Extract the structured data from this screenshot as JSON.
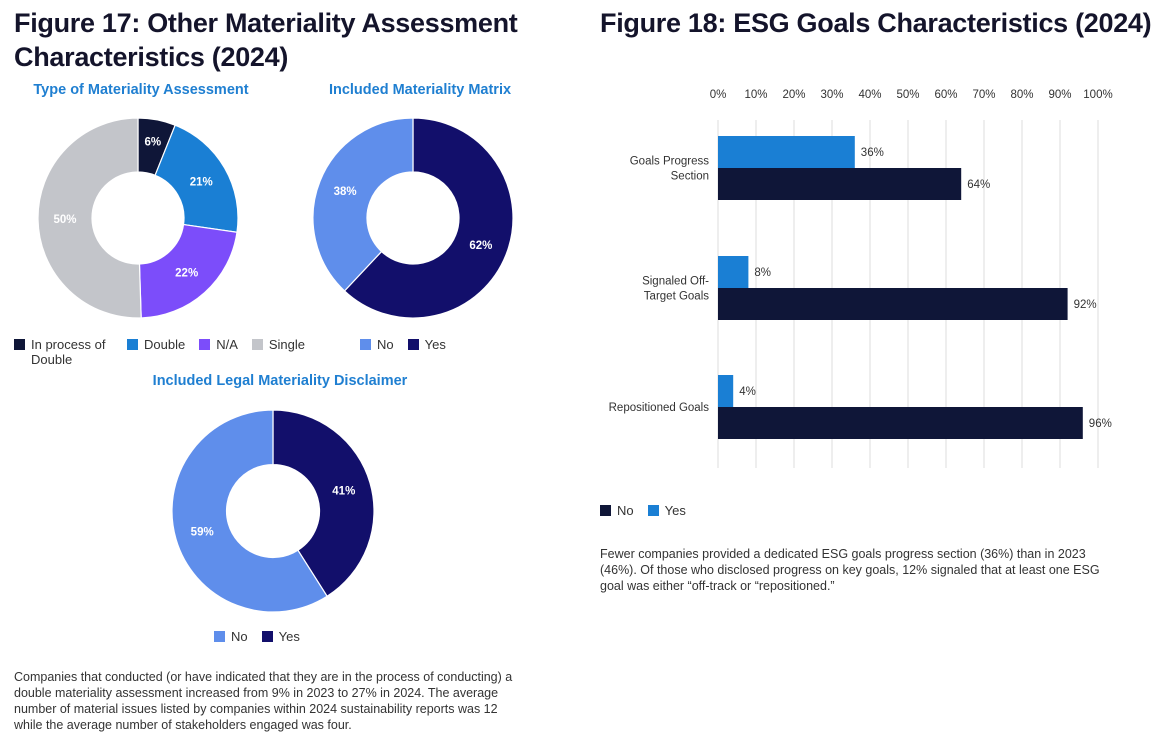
{
  "figure17": {
    "title": "Figure 17: Other Materiality Assessment Characteristics (2024)",
    "caption": "Companies that conducted (or have indicated that they are in the process of conducting) a double materiality assessment increased from 9% in 2023 to 27% in 2024. The average number of material issues listed by companies within 2024 sustainability reports was 12 while the average number of stakeholders engaged was four."
  },
  "figure18": {
    "title": "Figure 18: ESG Goals Characteristics (2024)",
    "caption": "Fewer companies provided a dedicated ESG goals progress section (36%) than in 2023 (46%). Of those who disclosed progress on key goals, 12% signaled that at least one ESG goal was either “off-track or “repositioned.”"
  },
  "chart_data": [
    {
      "type": "pie",
      "donut": true,
      "title": "Type of Materiality Assessment",
      "slices": [
        {
          "label": "In process of Double",
          "value": 6,
          "display": "6%",
          "color": "#0f1638"
        },
        {
          "label": "Double",
          "value": 21,
          "display": "21%",
          "color": "#1a7fd4"
        },
        {
          "label": "N/A",
          "value": 22,
          "display": "22%",
          "color": "#7c4dfa"
        },
        {
          "label": "Single",
          "value": 50,
          "display": "50%",
          "color": "#c3c5ca"
        }
      ],
      "legend": [
        "In process of Double",
        "Double",
        "N/A",
        "Single"
      ],
      "legend_placement": "bottom"
    },
    {
      "type": "pie",
      "donut": true,
      "title": "Included Materiality Matrix",
      "slices": [
        {
          "label": "Yes",
          "value": 62,
          "display": "62%",
          "color": "#120f6b"
        },
        {
          "label": "No",
          "value": 38,
          "display": "38%",
          "color": "#5f8eeb"
        }
      ],
      "legend": [
        "No",
        "Yes"
      ],
      "legend_placement": "bottom"
    },
    {
      "type": "pie",
      "donut": true,
      "title": "Included Legal Materiality Disclaimer",
      "slices": [
        {
          "label": "Yes",
          "value": 41,
          "display": "41%",
          "color": "#120f6b"
        },
        {
          "label": "No",
          "value": 59,
          "display": "59%",
          "color": "#5f8eeb"
        }
      ],
      "legend": [
        "No",
        "Yes"
      ],
      "legend_placement": "bottom"
    },
    {
      "type": "bar",
      "orientation": "horizontal",
      "categories": [
        "Goals Progress Section",
        "Signaled Off-Target Goals",
        "Repositioned Goals"
      ],
      "category_lines": [
        [
          "Goals Progress",
          "Section"
        ],
        [
          "Signaled Off-",
          "Target Goals"
        ],
        [
          "Repositioned Goals"
        ]
      ],
      "series": [
        {
          "name": "Yes",
          "values": [
            36,
            8,
            4
          ],
          "color": "#1a7fd4"
        },
        {
          "name": "No",
          "values": [
            64,
            92,
            96
          ],
          "color": "#0f1638"
        }
      ],
      "xlim": [
        0,
        100
      ],
      "ticks": [
        0,
        10,
        20,
        30,
        40,
        50,
        60,
        70,
        80,
        90,
        100
      ],
      "tick_suffix": "%",
      "axis_position": "top",
      "grid": true,
      "legend": [
        "No",
        "Yes"
      ],
      "legend_placement": "bottom"
    }
  ]
}
